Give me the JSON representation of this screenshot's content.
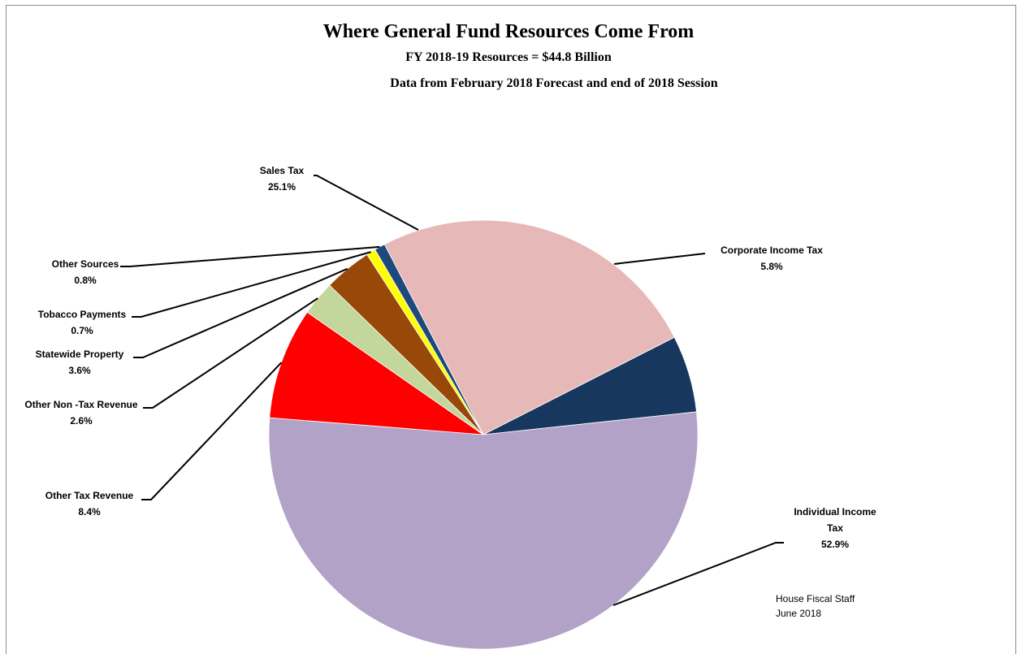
{
  "chart_data": {
    "type": "pie",
    "title": "Where General Fund Resources Come From",
    "subtitle": "FY 2018-19 Resources = $44.8 Billion",
    "subtitle2": "Data from February 2018 Forecast and end of 2018 Session",
    "slices": [
      {
        "key": "corporate",
        "name_lines": [
          "Corporate Income Tax"
        ],
        "value": 5.8,
        "pct_label": "5.8%",
        "color": "#17375e"
      },
      {
        "key": "individual",
        "name_lines": [
          "Individual Income",
          "Tax"
        ],
        "value": 52.9,
        "pct_label": "52.9%",
        "color": "#b3a2c7"
      },
      {
        "key": "other_tax",
        "name_lines": [
          "Other Tax Revenue"
        ],
        "value": 8.4,
        "pct_label": "8.4%",
        "color": "#ff0000"
      },
      {
        "key": "other_nontax",
        "name_lines": [
          "Other Non -Tax Revenue"
        ],
        "value": 2.6,
        "pct_label": "2.6%",
        "color": "#c3d69b"
      },
      {
        "key": "statewide",
        "name_lines": [
          "Statewide Property"
        ],
        "value": 3.6,
        "pct_label": "3.6%",
        "color": "#984807"
      },
      {
        "key": "tobacco",
        "name_lines": [
          "Tobacco Payments"
        ],
        "value": 0.7,
        "pct_label": "0.7%",
        "color": "#ffff00"
      },
      {
        "key": "other_sources",
        "name_lines": [
          "Other Sources"
        ],
        "value": 0.8,
        "pct_label": "0.8%",
        "color": "#1f497d"
      },
      {
        "key": "sales",
        "name_lines": [
          "Sales Tax"
        ],
        "value": 25.1,
        "pct_label": "25.1%",
        "color": "#e6b9b8"
      }
    ]
  },
  "credit": {
    "line1": "House Fiscal Staff",
    "line2": "June 2018"
  }
}
